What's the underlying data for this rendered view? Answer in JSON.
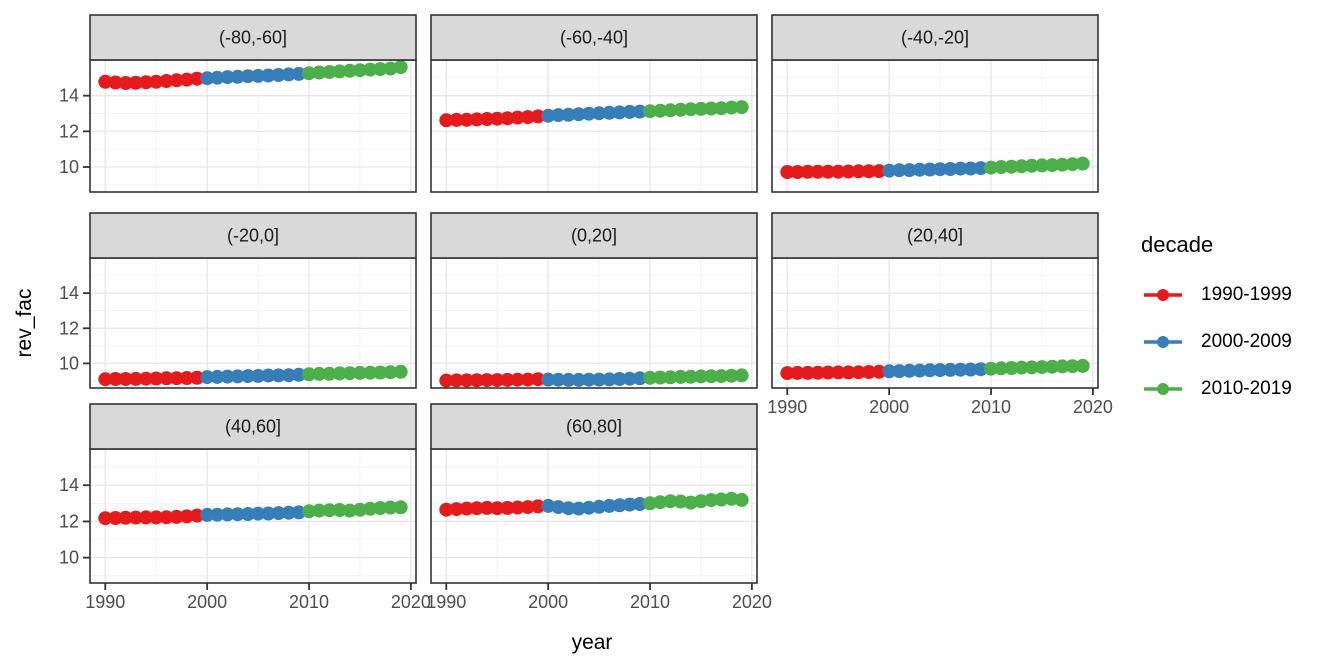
{
  "legend": {
    "title": "decade",
    "items": [
      {
        "label": "1990-1999",
        "color": "#E41A1C"
      },
      {
        "label": "2000-2009",
        "color": "#377EB8"
      },
      {
        "label": "2010-2019",
        "color": "#4DAF4A"
      }
    ]
  },
  "colors": {
    "strip_bg": "#D9D9D9",
    "strip_text": "#1A1A1A",
    "panel_bg": "#FFFFFF",
    "panel_border": "#333333",
    "grid_major": "#E6E6E6",
    "grid_minor": "#F2F2F2",
    "tick_mark": "#333333",
    "tick_text": "#4D4D4D"
  },
  "chart_data": {
    "type": "scatter",
    "title": "",
    "xlabel": "year",
    "ylabel": "rev_fac",
    "xlim": [
      1988.5,
      2020.5
    ],
    "ylim": [
      8.6,
      16.0
    ],
    "x_ticks": [
      1990,
      2000,
      2010,
      2020
    ],
    "y_ticks": [
      10,
      12,
      14
    ],
    "x_minor": [
      1995,
      2005,
      2015
    ],
    "y_minor": [
      9,
      11,
      13,
      15
    ],
    "grid": true,
    "legend_position": "right",
    "point_radius": 7,
    "x": [
      1990,
      1991,
      1992,
      1993,
      1994,
      1995,
      1996,
      1997,
      1998,
      1999,
      2000,
      2001,
      2002,
      2003,
      2004,
      2005,
      2006,
      2007,
      2008,
      2009,
      2010,
      2011,
      2012,
      2013,
      2014,
      2015,
      2016,
      2017,
      2018,
      2019
    ],
    "series": [
      {
        "name": "1990-1999",
        "color": "#E41A1C",
        "year_range": [
          1990,
          1999
        ]
      },
      {
        "name": "2000-2009",
        "color": "#377EB8",
        "year_range": [
          2000,
          2009
        ]
      },
      {
        "name": "2010-2019",
        "color": "#4DAF4A",
        "year_range": [
          2010,
          2019
        ]
      }
    ],
    "facets": [
      {
        "label": "(-80,-60]",
        "values": [
          14.78,
          14.74,
          14.71,
          14.72,
          14.75,
          14.78,
          14.82,
          14.86,
          14.9,
          14.95,
          14.98,
          15.01,
          15.04,
          15.06,
          15.09,
          15.11,
          15.13,
          15.16,
          15.19,
          15.22,
          15.26,
          15.3,
          15.33,
          15.36,
          15.4,
          15.43,
          15.46,
          15.49,
          15.52,
          15.6
        ]
      },
      {
        "label": "(-60,-40]",
        "values": [
          12.62,
          12.64,
          12.65,
          12.67,
          12.69,
          12.71,
          12.74,
          12.77,
          12.8,
          12.84,
          12.88,
          12.91,
          12.93,
          12.96,
          12.99,
          13.02,
          13.04,
          13.06,
          13.09,
          13.11,
          13.13,
          13.16,
          13.18,
          13.21,
          13.24,
          13.26,
          13.28,
          13.3,
          13.33,
          13.36
        ]
      },
      {
        "label": "(-40,-20]",
        "values": [
          9.72,
          9.72,
          9.73,
          9.73,
          9.74,
          9.74,
          9.75,
          9.76,
          9.76,
          9.77,
          9.8,
          9.82,
          9.83,
          9.85,
          9.86,
          9.88,
          9.89,
          9.91,
          9.92,
          9.94,
          9.97,
          10.0,
          10.02,
          10.04,
          10.07,
          10.09,
          10.11,
          10.13,
          10.16,
          10.19
        ]
      },
      {
        "label": "(-20,0]",
        "values": [
          9.1,
          9.11,
          9.11,
          9.12,
          9.13,
          9.14,
          9.15,
          9.16,
          9.17,
          9.18,
          9.22,
          9.23,
          9.25,
          9.26,
          9.28,
          9.29,
          9.31,
          9.32,
          9.33,
          9.35,
          9.38,
          9.4,
          9.41,
          9.43,
          9.44,
          9.46,
          9.47,
          9.48,
          9.5,
          9.52
        ]
      },
      {
        "label": "(0,20]",
        "values": [
          9.02,
          9.03,
          9.03,
          9.04,
          9.05,
          9.05,
          9.06,
          9.07,
          9.08,
          9.1,
          9.08,
          9.07,
          9.06,
          9.06,
          9.07,
          9.08,
          9.09,
          9.11,
          9.13,
          9.15,
          9.18,
          9.2,
          9.21,
          9.23,
          9.24,
          9.26,
          9.27,
          9.28,
          9.3,
          9.32
        ]
      },
      {
        "label": "(20,40]",
        "values": [
          9.45,
          9.46,
          9.46,
          9.47,
          9.48,
          9.49,
          9.49,
          9.5,
          9.51,
          9.52,
          9.55,
          9.56,
          9.58,
          9.59,
          9.61,
          9.62,
          9.63,
          9.64,
          9.65,
          9.67,
          9.7,
          9.72,
          9.74,
          9.76,
          9.77,
          9.79,
          9.81,
          9.83,
          9.84,
          9.86
        ]
      },
      {
        "label": "(40,60]",
        "values": [
          12.18,
          12.19,
          12.2,
          12.21,
          12.22,
          12.22,
          12.23,
          12.25,
          12.28,
          12.32,
          12.36,
          12.37,
          12.39,
          12.4,
          12.41,
          12.43,
          12.44,
          12.46,
          12.48,
          12.5,
          12.56,
          12.6,
          12.62,
          12.63,
          12.6,
          12.64,
          12.7,
          12.74,
          12.77,
          12.78
        ]
      },
      {
        "label": "(60,80]",
        "values": [
          12.65,
          12.68,
          12.71,
          12.73,
          12.75,
          12.73,
          12.75,
          12.77,
          12.79,
          12.83,
          12.86,
          12.79,
          12.73,
          12.71,
          12.76,
          12.81,
          12.86,
          12.89,
          12.93,
          12.96,
          13.0,
          13.06,
          13.12,
          13.1,
          13.04,
          13.12,
          13.18,
          13.21,
          13.25,
          13.19
        ]
      }
    ]
  }
}
